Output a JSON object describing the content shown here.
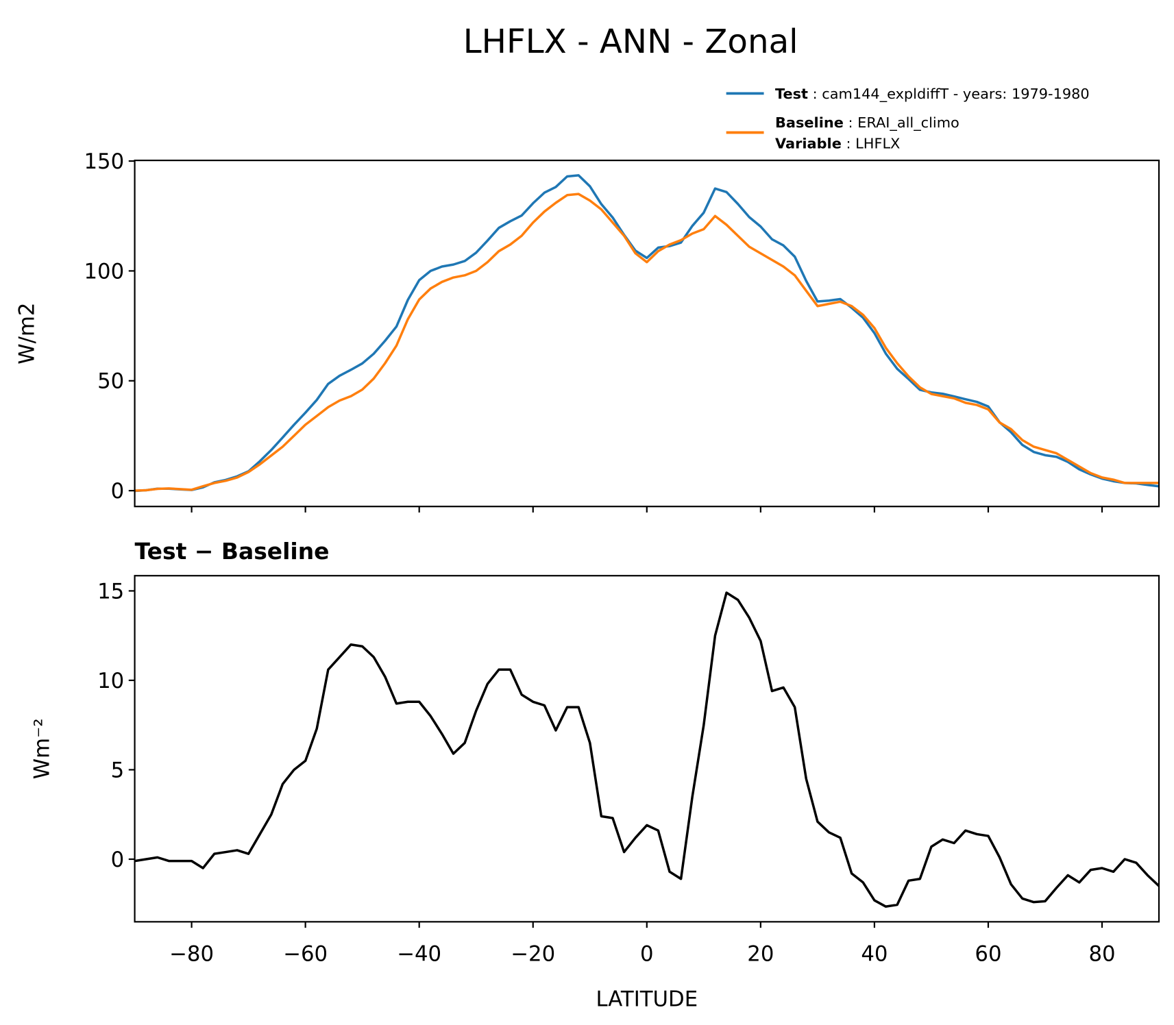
{
  "title": "LHFLX - ANN - Zonal",
  "legend": {
    "variable_name": "Variable",
    "variable_text": " : LHFLX"
  },
  "chart_data": [
    {
      "type": "line",
      "ylabel": "W/m2",
      "x": [
        -90,
        -88,
        -86,
        -84,
        -82,
        -80,
        -78,
        -76,
        -74,
        -72,
        -70,
        -68,
        -66,
        -64,
        -62,
        -60,
        -58,
        -56,
        -54,
        -52,
        -50,
        -48,
        -46,
        -44,
        -42,
        -40,
        -38,
        -36,
        -34,
        -32,
        -30,
        -28,
        -26,
        -24,
        -22,
        -20,
        -18,
        -16,
        -14,
        -12,
        -10,
        -8,
        -6,
        -4,
        -2,
        0,
        2,
        4,
        6,
        8,
        10,
        12,
        14,
        16,
        18,
        20,
        22,
        24,
        26,
        28,
        30,
        32,
        34,
        36,
        38,
        40,
        42,
        44,
        46,
        48,
        50,
        52,
        54,
        56,
        58,
        60,
        62,
        64,
        66,
        68,
        70,
        72,
        74,
        76,
        78,
        80,
        82,
        84,
        86,
        88,
        90
      ],
      "series": [
        {
          "name": "Test",
          "legend_text": " : cam144_expldiffT - years: 1979-1980",
          "color": "#1f77b4",
          "values": [
            -0.1,
            0.2,
            0.9,
            0.9,
            0.6,
            0.3,
            1.5,
            3.8,
            4.9,
            6.5,
            8.8,
            13.4,
            18.5,
            24.2,
            30,
            35.5,
            41.3,
            48.6,
            52.3,
            55,
            57.9,
            62.3,
            68.2,
            74.7,
            86.8,
            95.8,
            100,
            102,
            102.9,
            104.5,
            108.3,
            113.8,
            119.6,
            122.6,
            125.2,
            130.8,
            135.6,
            138.2,
            143,
            143.5,
            138.5,
            130.4,
            124.3,
            116.4,
            109.2,
            105.9,
            110.6,
            111.3,
            112.9,
            120.5,
            126.5,
            137.5,
            135.9,
            130.5,
            124.5,
            120.2,
            114.4,
            111.6,
            106.5,
            95.5,
            86.1,
            86.5,
            87.2,
            83.2,
            78.7,
            71.7,
            62.35,
            55.45,
            50.8,
            45.9,
            44.7,
            44.1,
            42.9,
            41.6,
            40.4,
            38.3,
            31.1,
            26.6,
            20.8,
            17.6,
            16.15,
            15.4,
            13.1,
            9.7,
            7.4,
            5.5,
            4.3,
            3.5,
            3.3,
            2.6,
            2.0
          ]
        },
        {
          "name": "Baseline",
          "legend_text": " : ERAI_all_climo",
          "color": "#ff7f0e",
          "values": [
            0,
            0.2,
            0.8,
            1,
            0.7,
            0.4,
            2,
            3.5,
            4.5,
            6,
            8.5,
            12,
            16,
            20,
            25,
            30,
            34,
            38,
            41,
            43,
            46,
            51,
            58,
            66,
            78,
            87,
            92,
            95,
            97,
            98,
            100,
            104,
            109,
            112,
            116,
            122,
            127,
            131,
            134.5,
            135,
            132,
            128,
            122,
            116,
            108,
            104,
            109,
            112,
            114,
            117,
            119,
            125,
            121,
            116,
            111,
            108,
            105,
            102,
            98,
            91,
            84,
            85,
            86,
            84,
            80,
            74,
            65,
            58,
            52,
            47,
            44,
            43,
            42,
            40,
            39,
            37,
            31,
            28,
            23,
            20,
            18.5,
            17,
            14,
            11,
            8,
            6,
            5,
            3.5,
            3.5,
            3.5,
            3.5
          ]
        }
      ],
      "xlim": [
        -90,
        90
      ],
      "xticks": [
        -80,
        -60,
        -40,
        -20,
        0,
        20,
        40,
        60,
        80
      ],
      "ylim": [
        -7.2,
        150.3
      ],
      "yticks": [
        0,
        50,
        100,
        150
      ]
    },
    {
      "type": "line",
      "title": "Test − Baseline",
      "ylabel": "Wm⁻²",
      "xlabel": "LATITUDE",
      "x": [
        -90,
        -88,
        -86,
        -84,
        -82,
        -80,
        -78,
        -76,
        -74,
        -72,
        -70,
        -68,
        -66,
        -64,
        -62,
        -60,
        -58,
        -56,
        -54,
        -52,
        -50,
        -48,
        -46,
        -44,
        -42,
        -40,
        -38,
        -36,
        -34,
        -32,
        -30,
        -28,
        -26,
        -24,
        -22,
        -20,
        -18,
        -16,
        -14,
        -12,
        -10,
        -8,
        -6,
        -4,
        -2,
        0,
        2,
        4,
        6,
        8,
        10,
        12,
        14,
        16,
        18,
        20,
        22,
        24,
        26,
        28,
        30,
        32,
        34,
        36,
        38,
        40,
        42,
        44,
        46,
        48,
        50,
        52,
        54,
        56,
        58,
        60,
        62,
        64,
        66,
        68,
        70,
        72,
        74,
        76,
        78,
        80,
        82,
        84,
        86,
        88,
        90
      ],
      "series": [
        {
          "color": "#000000",
          "values": [
            -0.1,
            0,
            0.1,
            -0.1,
            -0.1,
            -0.1,
            -0.5,
            0.3,
            0.4,
            0.5,
            0.3,
            1.4,
            2.5,
            4.2,
            5,
            5.5,
            7.3,
            10.6,
            11.3,
            12,
            11.9,
            11.3,
            10.2,
            8.7,
            8.8,
            8.8,
            8,
            7,
            5.9,
            6.5,
            8.3,
            9.8,
            10.6,
            10.6,
            9.2,
            8.8,
            8.6,
            7.2,
            8.5,
            8.5,
            6.5,
            2.4,
            2.3,
            0.4,
            1.2,
            1.9,
            1.6,
            -0.7,
            -1.1,
            3.5,
            7.5,
            12.5,
            14.9,
            14.5,
            13.5,
            12.2,
            9.4,
            9.6,
            8.5,
            4.5,
            2.1,
            1.5,
            1.2,
            -0.8,
            -1.3,
            -2.3,
            -2.65,
            -2.55,
            -1.2,
            -1.1,
            0.7,
            1.1,
            0.9,
            1.6,
            1.4,
            1.3,
            0.1,
            -1.4,
            -2.2,
            -2.4,
            -2.35,
            -1.6,
            -0.9,
            -1.3,
            -0.6,
            -0.5,
            -0.7,
            0,
            -0.2,
            -0.9,
            -1.5
          ]
        }
      ],
      "xlim": [
        -90,
        90
      ],
      "xticks": [
        {
          "value": -80,
          "label": "−80"
        },
        {
          "value": -60,
          "label": "−60"
        },
        {
          "value": -40,
          "label": "−40"
        },
        {
          "value": -20,
          "label": "−20"
        },
        0,
        20,
        40,
        60,
        80
      ],
      "ylim": [
        -3.5,
        15.85
      ],
      "yticks": [
        0,
        5,
        10,
        15
      ]
    }
  ]
}
